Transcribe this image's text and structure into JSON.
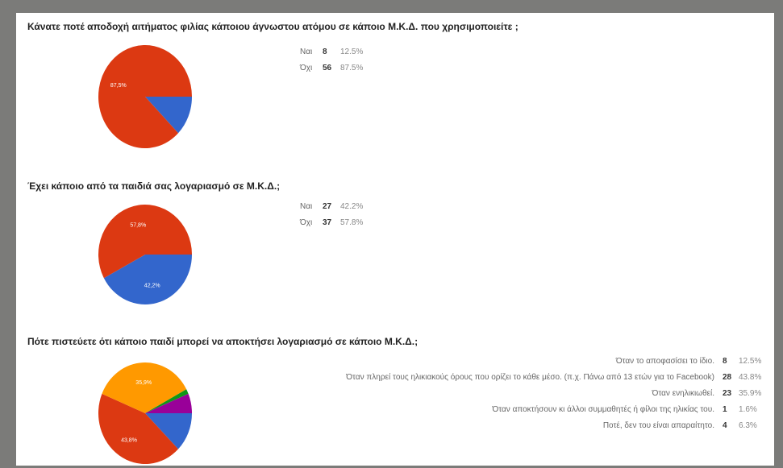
{
  "chart_data": [
    {
      "type": "pie",
      "title": "Κάνατε ποτέ αποδοχή αιτήματος φιλίας κάποιου άγνωστου ατόμου σε κάποιο Μ.Κ.Δ. που χρησιμοποιείτε ;",
      "categories": [
        "Ναι",
        "Όχι"
      ],
      "values": [
        8,
        56
      ],
      "percents": [
        "12.5%",
        "87.5%"
      ],
      "colors": [
        "#3366cc",
        "#dc3912"
      ],
      "slice_labels": [
        "",
        "87,5%"
      ]
    },
    {
      "type": "pie",
      "title": "Έχει κάποιο από τα παιδιά σας λογαριασμό σε Μ.Κ.Δ.;",
      "categories": [
        "Ναι",
        "Όχι"
      ],
      "values": [
        27,
        37
      ],
      "percents": [
        "42.2%",
        "57.8%"
      ],
      "colors": [
        "#3366cc",
        "#dc3912"
      ],
      "slice_labels": [
        "42,2%",
        "57,8%"
      ]
    },
    {
      "type": "pie",
      "title": "Πότε πιστεύετε ότι κάποιο παιδί μπορεί να αποκτήσει λογαριασμό σε κάποιο Μ.Κ.Δ.;",
      "categories": [
        "Όταν το αποφασίσει το ίδιο.",
        "Όταν πληρεί τους ηλικιακούς όρους που ορίζει το κάθε μέσο. (π.χ. Πάνω από 13 ετών για το Facebook)",
        "Όταν ενηλικιωθεί.",
        "Όταν αποκτήσουν κι άλλοι συμμαθητές ή φίλοι της ηλικίας του.",
        "Ποτέ, δεν του είναι απαραίτητο."
      ],
      "values": [
        8,
        28,
        23,
        1,
        4
      ],
      "percents": [
        "12.5%",
        "43.8%",
        "35.9%",
        "1.6%",
        "6.3%"
      ],
      "colors": [
        "#3366cc",
        "#dc3912",
        "#ff9900",
        "#109618",
        "#990099"
      ],
      "slice_labels": [
        "",
        "43,8%",
        "35,9%",
        "",
        ""
      ]
    }
  ]
}
